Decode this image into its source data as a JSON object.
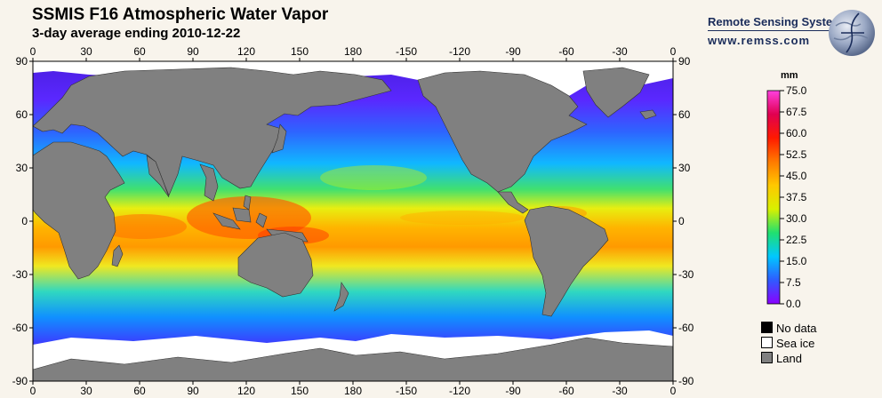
{
  "header": {
    "title": "SSMIS F16 Atmospheric Water Vapor",
    "subtitle": "3-day average ending 2010-12-22"
  },
  "branding": {
    "name": "Remote Sensing Systems",
    "url": "www.remss.com",
    "logo": "globe-logo-icon"
  },
  "map": {
    "top_longitude_labels": [
      "0",
      "30",
      "60",
      "90",
      "120",
      "150",
      "180",
      "-150",
      "-120",
      "-90",
      "-60",
      "-30",
      "0"
    ],
    "bottom_longitude_labels": [
      "0",
      "30",
      "60",
      "90",
      "120",
      "150",
      "180",
      "-150",
      "-120",
      "-90",
      "-60",
      "-30",
      "0"
    ],
    "latitude_labels": [
      "90",
      "60",
      "30",
      "0",
      "-30",
      "-60",
      "-90"
    ],
    "colors": {
      "land": "#808080",
      "sea_ice": "#ffffff",
      "no_data": "#000000"
    }
  },
  "colorbar": {
    "units": "mm",
    "tick_labels": [
      "75.0",
      "67.5",
      "60.0",
      "52.5",
      "45.0",
      "37.5",
      "30.0",
      "22.5",
      "15.0",
      "7.5",
      "0.0"
    ],
    "range": [
      0,
      75
    ],
    "colors": [
      "#8a00ff",
      "#2f5bff",
      "#00c8ff",
      "#20e070",
      "#d8f000",
      "#ffc800",
      "#ff7a00",
      "#ff1a00",
      "#e00050",
      "#ff40e0"
    ]
  },
  "legend": {
    "items": [
      {
        "label": "No data",
        "color": "#000000"
      },
      {
        "label": "Sea ice",
        "color": "#ffffff"
      },
      {
        "label": "Land",
        "color": "#808080"
      }
    ]
  }
}
